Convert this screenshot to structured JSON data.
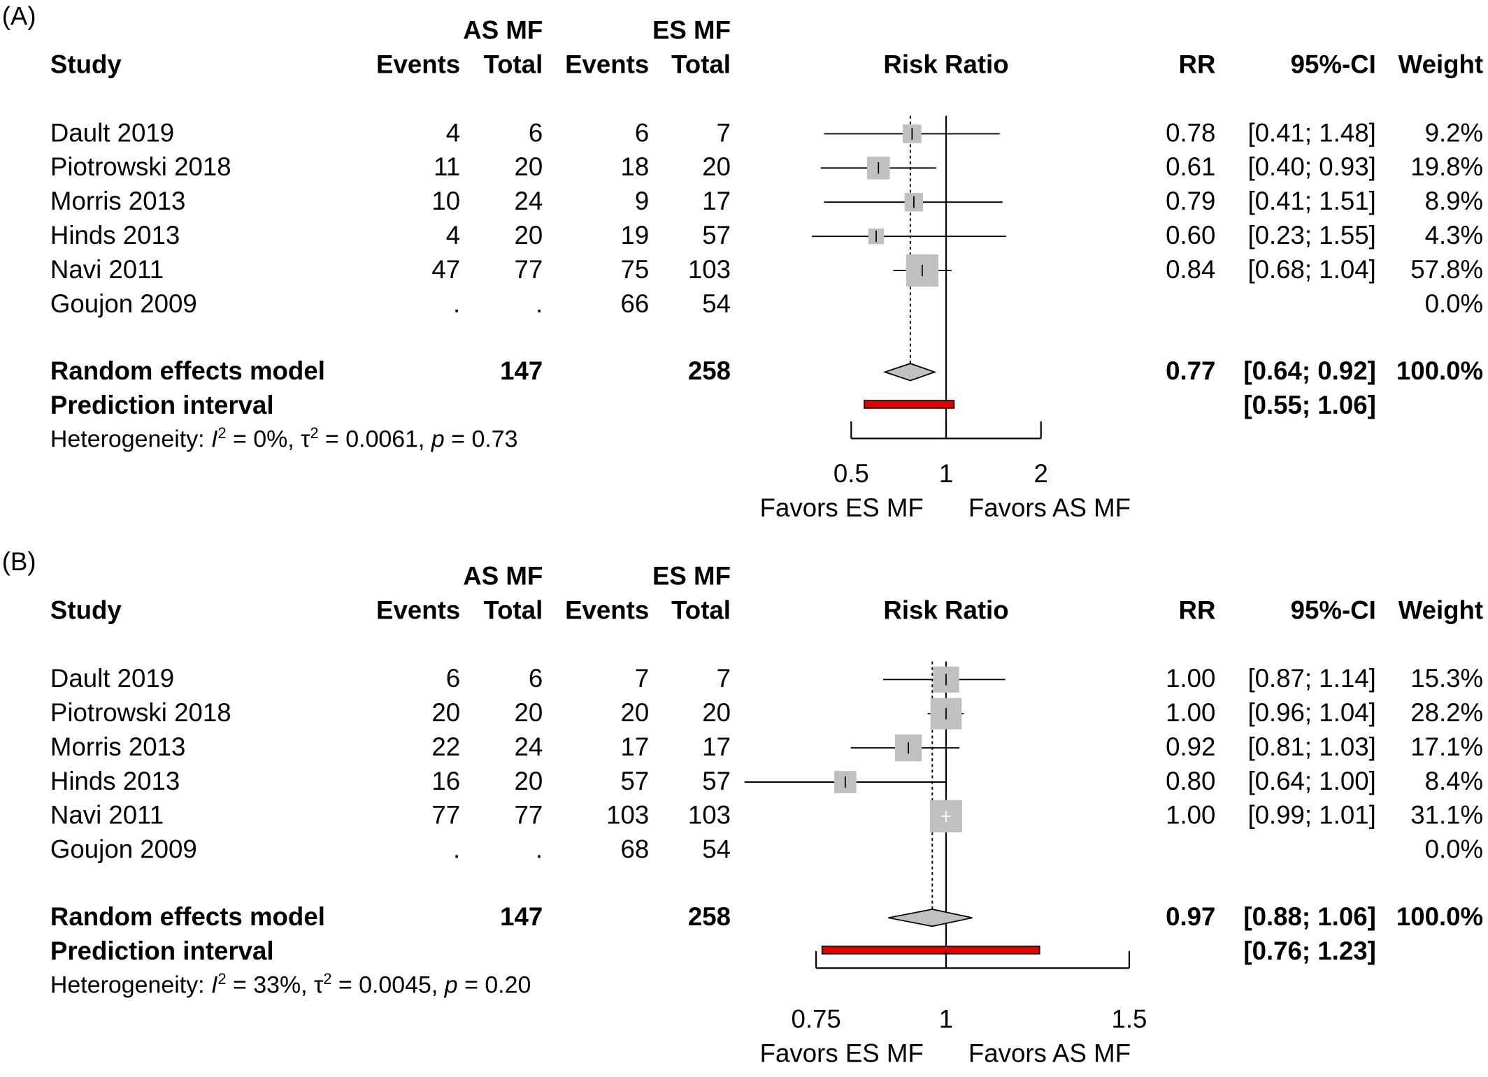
{
  "chart_data": [
    {
      "type": "forest",
      "panel_label": "(A)",
      "column_headers": {
        "study": "Study",
        "group1": "AS MF",
        "group2": "ES MF",
        "events": "Events",
        "total": "Total",
        "plot": "Risk Ratio",
        "rr": "RR",
        "ci": "95%-CI",
        "weight": "Weight"
      },
      "studies": [
        {
          "study": "Dault 2019",
          "e1": "4",
          "n1": "6",
          "e2": "6",
          "n2": "7",
          "rr": 0.78,
          "lo": 0.41,
          "hi": 1.48,
          "rr_text": "0.78",
          "ci_text": "[0.41; 1.48]",
          "weight_text": "9.2%",
          "weight": 9.2
        },
        {
          "study": "Piotrowski 2018",
          "e1": "11",
          "n1": "20",
          "e2": "18",
          "n2": "20",
          "rr": 0.61,
          "lo": 0.4,
          "hi": 0.93,
          "rr_text": "0.61",
          "ci_text": "[0.40; 0.93]",
          "weight_text": "19.8%",
          "weight": 19.8
        },
        {
          "study": "Morris 2013",
          "e1": "10",
          "n1": "24",
          "e2": "9",
          "n2": "17",
          "rr": 0.79,
          "lo": 0.41,
          "hi": 1.51,
          "rr_text": "0.79",
          "ci_text": "[0.41; 1.51]",
          "weight_text": "8.9%",
          "weight": 8.9
        },
        {
          "study": "Hinds 2013",
          "e1": "4",
          "n1": "20",
          "e2": "19",
          "n2": "57",
          "rr": 0.6,
          "lo": 0.23,
          "hi": 1.55,
          "rr_text": "0.60",
          "ci_text": "[0.23; 1.55]",
          "weight_text": "4.3%",
          "weight": 4.3
        },
        {
          "study": "Navi 2011",
          "e1": "47",
          "n1": "77",
          "e2": "75",
          "n2": "103",
          "rr": 0.84,
          "lo": 0.68,
          "hi": 1.04,
          "rr_text": "0.84",
          "ci_text": "[0.68; 1.04]",
          "weight_text": "57.8%",
          "weight": 57.8
        },
        {
          "study": "Goujon 2009",
          "e1": ".",
          "n1": ".",
          "e2": "66",
          "n2": "54",
          "rr": null,
          "lo": null,
          "hi": null,
          "rr_text": "",
          "ci_text": "",
          "weight_text": "0.0%",
          "weight": 0
        }
      ],
      "model": {
        "label": "Random effects model",
        "n1": "147",
        "n2": "258",
        "rr": 0.77,
        "lo": 0.64,
        "hi": 0.92,
        "rr_text": "0.77",
        "ci_text": "[0.64; 0.92]",
        "weight_text": "100.0%"
      },
      "prediction": {
        "label": "Prediction interval",
        "lo": 0.55,
        "hi": 1.06,
        "ci_text": "[0.55; 1.06]"
      },
      "heterogeneity": {
        "prefix": "Heterogeneity: ",
        "i2_symbol": "I",
        "i2_value": " = 0%, ",
        "tau2_symbol": "τ",
        "tau2_value": " = 0.0061, ",
        "p_symbol": "p",
        "p_value": " = 0.73",
        "superscript": "2"
      },
      "x_axis": {
        "scale": "log",
        "xlim": [
          0.5,
          2
        ],
        "ticks": [
          0.5,
          1,
          2
        ],
        "tick_labels": [
          "0.5",
          "1",
          "2"
        ],
        "null_value": 1
      },
      "favors_left": "Favors ES MF",
      "favors_right": "Favors AS MF",
      "colors": {
        "square": "#c0c0c0",
        "prediction": "#e00000",
        "diamond": "#c0c0c0"
      }
    },
    {
      "type": "forest",
      "panel_label": "(B)",
      "column_headers": {
        "study": "Study",
        "group1": "AS MF",
        "group2": "ES MF",
        "events": "Events",
        "total": "Total",
        "plot": "Risk Ratio",
        "rr": "RR",
        "ci": "95%-CI",
        "weight": "Weight"
      },
      "studies": [
        {
          "study": "Dault 2019",
          "e1": "6",
          "n1": "6",
          "e2": "7",
          "n2": "7",
          "rr": 1.0,
          "lo": 0.87,
          "hi": 1.14,
          "rr_text": "1.00",
          "ci_text": "[0.87; 1.14]",
          "weight_text": "15.3%",
          "weight": 15.3
        },
        {
          "study": "Piotrowski 2018",
          "e1": "20",
          "n1": "20",
          "e2": "20",
          "n2": "20",
          "rr": 1.0,
          "lo": 0.96,
          "hi": 1.04,
          "rr_text": "1.00",
          "ci_text": "[0.96; 1.04]",
          "weight_text": "28.2%",
          "weight": 28.2
        },
        {
          "study": "Morris 2013",
          "e1": "22",
          "n1": "24",
          "e2": "17",
          "n2": "17",
          "rr": 0.92,
          "lo": 0.81,
          "hi": 1.03,
          "rr_text": "0.92",
          "ci_text": "[0.81; 1.03]",
          "weight_text": "17.1%",
          "weight": 17.1
        },
        {
          "study": "Hinds 2013",
          "e1": "16",
          "n1": "20",
          "e2": "57",
          "n2": "57",
          "rr": 0.8,
          "lo": 0.64,
          "hi": 1.0,
          "rr_text": "0.80",
          "ci_text": "[0.64; 1.00]",
          "weight_text": "8.4%",
          "weight": 8.4
        },
        {
          "study": "Navi 2011",
          "e1": "77",
          "n1": "77",
          "e2": "103",
          "n2": "103",
          "rr": 1.0,
          "lo": 0.99,
          "hi": 1.01,
          "rr_text": "1.00",
          "ci_text": "[0.99; 1.01]",
          "weight_text": "31.1%",
          "weight": 31.1
        },
        {
          "study": "Goujon 2009",
          "e1": ".",
          "n1": ".",
          "e2": "68",
          "n2": "54",
          "rr": null,
          "lo": null,
          "hi": null,
          "rr_text": "",
          "ci_text": "",
          "weight_text": "0.0%",
          "weight": 0
        }
      ],
      "model": {
        "label": "Random effects model",
        "n1": "147",
        "n2": "258",
        "rr": 0.97,
        "lo": 0.88,
        "hi": 1.06,
        "rr_text": "0.97",
        "ci_text": "[0.88; 1.06]",
        "weight_text": "100.0%"
      },
      "prediction": {
        "label": "Prediction interval",
        "lo": 0.76,
        "hi": 1.23,
        "ci_text": "[0.76; 1.23]"
      },
      "heterogeneity": {
        "prefix": "Heterogeneity: ",
        "i2_symbol": "I",
        "i2_value": " = 33%, ",
        "tau2_symbol": "τ",
        "tau2_value": " = 0.0045, ",
        "p_symbol": "p",
        "p_value": " = 0.20",
        "superscript": "2"
      },
      "x_axis": {
        "scale": "log",
        "xlim": [
          0.75,
          1.5
        ],
        "ticks": [
          0.75,
          1,
          1.5
        ],
        "tick_labels": [
          "0.75",
          "1",
          "1.5"
        ],
        "null_value": 1
      },
      "favors_left": "Favors ES MF",
      "favors_right": "Favors AS MF",
      "colors": {
        "square": "#c0c0c0",
        "prediction": "#e00000",
        "diamond": "#c0c0c0"
      }
    }
  ]
}
